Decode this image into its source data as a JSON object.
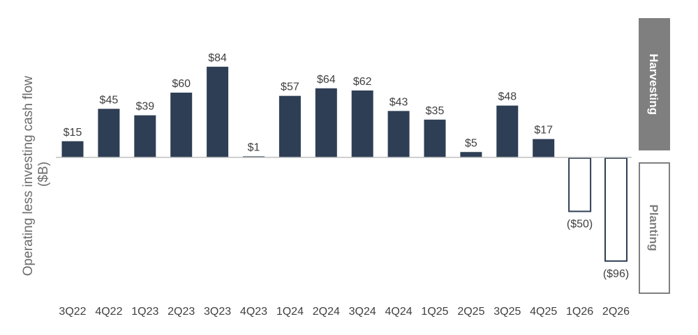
{
  "chart_data": {
    "type": "bar",
    "ylabel": "Operating less investing cash flow ($B)",
    "ylabel_lines": [
      "Operating less investing cash flow",
      "($B)"
    ],
    "categories": [
      "3Q22",
      "4Q22",
      "1Q23",
      "2Q23",
      "3Q23",
      "4Q23",
      "1Q24",
      "2Q24",
      "3Q24",
      "4Q24",
      "1Q25",
      "2Q25",
      "3Q25",
      "4Q25",
      "1Q26",
      "2Q26"
    ],
    "values": [
      15,
      45,
      39,
      60,
      84,
      1,
      57,
      64,
      62,
      43,
      35,
      5,
      48,
      17,
      -50,
      -96
    ],
    "data_labels": [
      "$15",
      "$45",
      "$39",
      "$60",
      "$84",
      "$1",
      "$57",
      "$64",
      "$62",
      "$43",
      "$35",
      "$5",
      "$48",
      "$17",
      "($50)",
      "($96)"
    ],
    "ylim": [
      -130,
      100
    ],
    "grid": false,
    "colors": {
      "positive_fill": "#2e3e55",
      "negative_stroke": "#2e3e55",
      "negative_fill": "#ffffff",
      "axis": "#bfbfbf",
      "harvesting_fill": "#7f7f7f",
      "harvesting_text": "#ffffff",
      "planting_stroke": "#7f7f7f",
      "planting_text": "#7f7f7f"
    },
    "bands": {
      "positive_label": "Harvesting",
      "negative_label": "Planting"
    }
  }
}
